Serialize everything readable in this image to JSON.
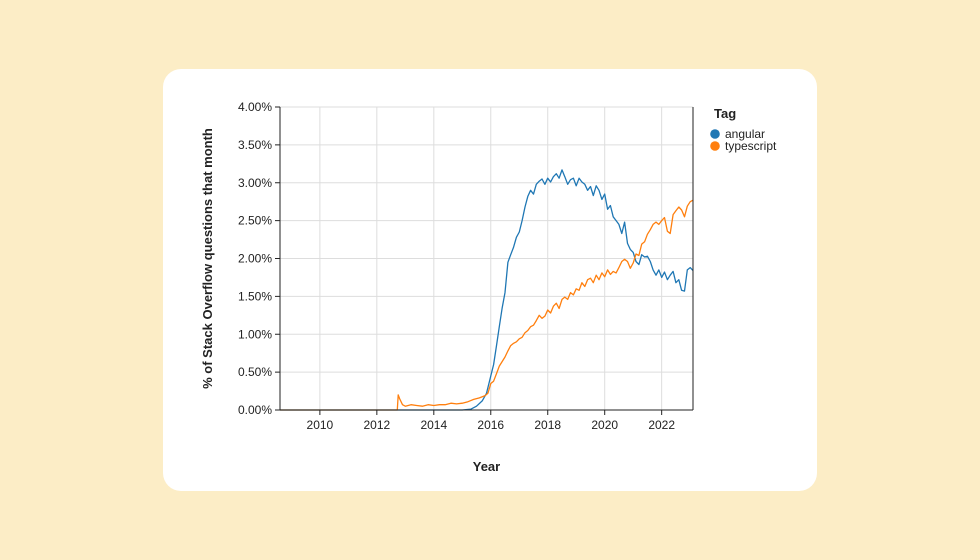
{
  "chart_data": {
    "type": "line",
    "xlabel": "Year",
    "ylabel": "% of Stack Overflow questions that month",
    "xlim": [
      2008.6,
      2023.1
    ],
    "ylim": [
      0,
      0.04
    ],
    "x_ticks": [
      {
        "value": 2010,
        "label": "2010"
      },
      {
        "value": 2012,
        "label": "2012"
      },
      {
        "value": 2014,
        "label": "2014"
      },
      {
        "value": 2016,
        "label": "2016"
      },
      {
        "value": 2018,
        "label": "2018"
      },
      {
        "value": 2020,
        "label": "2020"
      },
      {
        "value": 2022,
        "label": "2022"
      }
    ],
    "y_ticks": [
      {
        "value": 0.0,
        "label": "0.00%"
      },
      {
        "value": 0.005,
        "label": "0.50%"
      },
      {
        "value": 0.01,
        "label": "1.00%"
      },
      {
        "value": 0.015,
        "label": "1.50%"
      },
      {
        "value": 0.02,
        "label": "2.00%"
      },
      {
        "value": 0.025,
        "label": "2.50%"
      },
      {
        "value": 0.03,
        "label": "3.00%"
      },
      {
        "value": 0.035,
        "label": "3.50%"
      },
      {
        "value": 0.04,
        "label": "4.00%"
      }
    ],
    "grid": true,
    "legend": {
      "title": "Tag",
      "position": "right"
    },
    "series": [
      {
        "name": "angular",
        "color": "#1f77b4",
        "points": [
          [
            2008.6,
            0.0
          ],
          [
            2012.7,
            0.0
          ],
          [
            2013.5,
            0.0
          ],
          [
            2014.5,
            0.0
          ],
          [
            2015.0,
            0.0
          ],
          [
            2015.3,
            0.0001
          ],
          [
            2015.5,
            0.0005
          ],
          [
            2015.7,
            0.0012
          ],
          [
            2015.85,
            0.0022
          ],
          [
            2016.0,
            0.0045
          ],
          [
            2016.1,
            0.006
          ],
          [
            2016.2,
            0.0085
          ],
          [
            2016.3,
            0.011
          ],
          [
            2016.4,
            0.0135
          ],
          [
            2016.5,
            0.0155
          ],
          [
            2016.6,
            0.0195
          ],
          [
            2016.7,
            0.0205
          ],
          [
            2016.8,
            0.0215
          ],
          [
            2016.9,
            0.0228
          ],
          [
            2017.0,
            0.0235
          ],
          [
            2017.1,
            0.025
          ],
          [
            2017.2,
            0.0268
          ],
          [
            2017.3,
            0.0282
          ],
          [
            2017.4,
            0.029
          ],
          [
            2017.5,
            0.0285
          ],
          [
            2017.6,
            0.0298
          ],
          [
            2017.7,
            0.0302
          ],
          [
            2017.8,
            0.0305
          ],
          [
            2017.9,
            0.0298
          ],
          [
            2018.0,
            0.0306
          ],
          [
            2018.1,
            0.0301
          ],
          [
            2018.2,
            0.0308
          ],
          [
            2018.3,
            0.0312
          ],
          [
            2018.4,
            0.0306
          ],
          [
            2018.5,
            0.0317
          ],
          [
            2018.6,
            0.0308
          ],
          [
            2018.7,
            0.0298
          ],
          [
            2018.8,
            0.0304
          ],
          [
            2018.9,
            0.0306
          ],
          [
            2019.0,
            0.0296
          ],
          [
            2019.1,
            0.0306
          ],
          [
            2019.2,
            0.0301
          ],
          [
            2019.3,
            0.0298
          ],
          [
            2019.4,
            0.029
          ],
          [
            2019.5,
            0.0295
          ],
          [
            2019.6,
            0.0283
          ],
          [
            2019.7,
            0.0296
          ],
          [
            2019.8,
            0.029
          ],
          [
            2019.9,
            0.0278
          ],
          [
            2020.0,
            0.0285
          ],
          [
            2020.1,
            0.0265
          ],
          [
            2020.2,
            0.027
          ],
          [
            2020.3,
            0.0255
          ],
          [
            2020.4,
            0.025
          ],
          [
            2020.5,
            0.0245
          ],
          [
            2020.6,
            0.0233
          ],
          [
            2020.7,
            0.0248
          ],
          [
            2020.8,
            0.022
          ],
          [
            2020.9,
            0.0212
          ],
          [
            2021.0,
            0.0208
          ],
          [
            2021.1,
            0.0196
          ],
          [
            2021.2,
            0.0192
          ],
          [
            2021.3,
            0.0205
          ],
          [
            2021.4,
            0.0202
          ],
          [
            2021.5,
            0.0203
          ],
          [
            2021.6,
            0.0196
          ],
          [
            2021.7,
            0.0185
          ],
          [
            2021.8,
            0.0178
          ],
          [
            2021.9,
            0.0185
          ],
          [
            2022.0,
            0.0175
          ],
          [
            2022.1,
            0.0182
          ],
          [
            2022.2,
            0.0172
          ],
          [
            2022.3,
            0.0178
          ],
          [
            2022.4,
            0.0183
          ],
          [
            2022.5,
            0.0168
          ],
          [
            2022.6,
            0.0172
          ],
          [
            2022.7,
            0.0158
          ],
          [
            2022.8,
            0.0157
          ],
          [
            2022.9,
            0.0185
          ],
          [
            2023.0,
            0.0188
          ],
          [
            2023.1,
            0.0184
          ]
        ]
      },
      {
        "name": "typescript",
        "color": "#ff7f0e",
        "points": [
          [
            2008.6,
            0.0
          ],
          [
            2012.72,
            0.0
          ],
          [
            2012.75,
            0.002
          ],
          [
            2012.8,
            0.0015
          ],
          [
            2012.9,
            0.0007
          ],
          [
            2013.0,
            0.0005
          ],
          [
            2013.2,
            0.0007
          ],
          [
            2013.4,
            0.0006
          ],
          [
            2013.6,
            0.0005
          ],
          [
            2013.8,
            0.0007
          ],
          [
            2014.0,
            0.0006
          ],
          [
            2014.2,
            0.0007
          ],
          [
            2014.4,
            0.0007
          ],
          [
            2014.6,
            0.0009
          ],
          [
            2014.8,
            0.0008
          ],
          [
            2015.0,
            0.0009
          ],
          [
            2015.2,
            0.0011
          ],
          [
            2015.4,
            0.0014
          ],
          [
            2015.6,
            0.0016
          ],
          [
            2015.8,
            0.0019
          ],
          [
            2015.9,
            0.0022
          ],
          [
            2016.0,
            0.0035
          ],
          [
            2016.1,
            0.0038
          ],
          [
            2016.2,
            0.0048
          ],
          [
            2016.3,
            0.0058
          ],
          [
            2016.4,
            0.0064
          ],
          [
            2016.5,
            0.007
          ],
          [
            2016.6,
            0.0078
          ],
          [
            2016.7,
            0.0085
          ],
          [
            2016.8,
            0.0088
          ],
          [
            2016.9,
            0.009
          ],
          [
            2017.0,
            0.0094
          ],
          [
            2017.1,
            0.0096
          ],
          [
            2017.2,
            0.0102
          ],
          [
            2017.3,
            0.0105
          ],
          [
            2017.4,
            0.011
          ],
          [
            2017.5,
            0.0112
          ],
          [
            2017.6,
            0.0118
          ],
          [
            2017.7,
            0.0125
          ],
          [
            2017.8,
            0.0121
          ],
          [
            2017.9,
            0.0124
          ],
          [
            2018.0,
            0.0132
          ],
          [
            2018.1,
            0.0128
          ],
          [
            2018.2,
            0.0137
          ],
          [
            2018.3,
            0.0141
          ],
          [
            2018.4,
            0.0134
          ],
          [
            2018.5,
            0.0146
          ],
          [
            2018.6,
            0.0149
          ],
          [
            2018.7,
            0.0146
          ],
          [
            2018.8,
            0.0155
          ],
          [
            2018.9,
            0.0152
          ],
          [
            2019.0,
            0.016
          ],
          [
            2019.1,
            0.0158
          ],
          [
            2019.2,
            0.0168
          ],
          [
            2019.3,
            0.0163
          ],
          [
            2019.4,
            0.0172
          ],
          [
            2019.5,
            0.0174
          ],
          [
            2019.6,
            0.0168
          ],
          [
            2019.7,
            0.0178
          ],
          [
            2019.8,
            0.0172
          ],
          [
            2019.9,
            0.0181
          ],
          [
            2020.0,
            0.0176
          ],
          [
            2020.1,
            0.0185
          ],
          [
            2020.2,
            0.0179
          ],
          [
            2020.3,
            0.0183
          ],
          [
            2020.4,
            0.0181
          ],
          [
            2020.5,
            0.0188
          ],
          [
            2020.6,
            0.0196
          ],
          [
            2020.7,
            0.0199
          ],
          [
            2020.8,
            0.0196
          ],
          [
            2020.9,
            0.0187
          ],
          [
            2021.0,
            0.0194
          ],
          [
            2021.1,
            0.0206
          ],
          [
            2021.2,
            0.0204
          ],
          [
            2021.3,
            0.0219
          ],
          [
            2021.4,
            0.0222
          ],
          [
            2021.5,
            0.0232
          ],
          [
            2021.6,
            0.0238
          ],
          [
            2021.7,
            0.0245
          ],
          [
            2021.8,
            0.0248
          ],
          [
            2021.9,
            0.0245
          ],
          [
            2022.0,
            0.025
          ],
          [
            2022.1,
            0.0254
          ],
          [
            2022.2,
            0.0236
          ],
          [
            2022.3,
            0.0233
          ],
          [
            2022.4,
            0.0258
          ],
          [
            2022.5,
            0.0263
          ],
          [
            2022.6,
            0.0268
          ],
          [
            2022.7,
            0.0264
          ],
          [
            2022.8,
            0.0255
          ],
          [
            2022.9,
            0.0269
          ],
          [
            2023.0,
            0.0275
          ],
          [
            2023.1,
            0.0277
          ]
        ]
      }
    ]
  }
}
